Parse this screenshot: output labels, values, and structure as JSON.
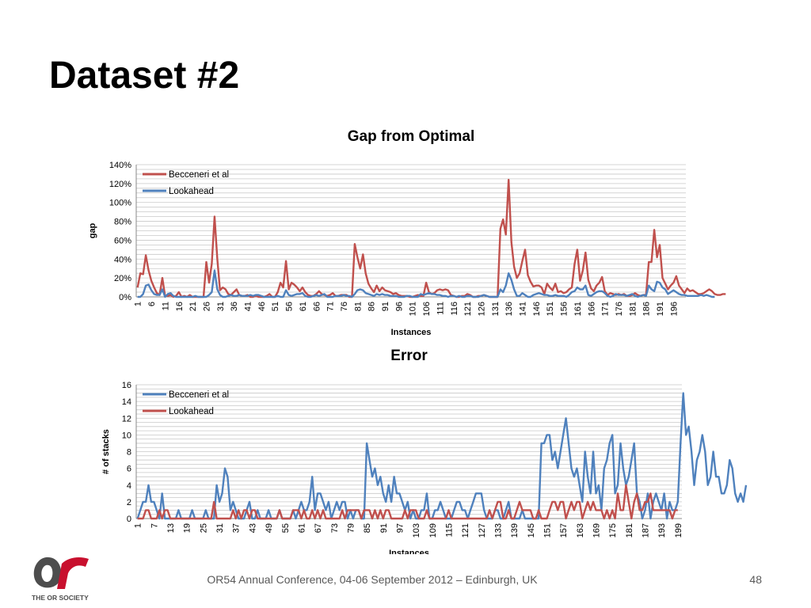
{
  "slide": {
    "title": "Dataset #2",
    "footer": "OR54 Annual Conference, 04-06 September 2012 – Edinburgh, UK",
    "page_number": "48",
    "logo_caption": "THE OR SOCIETY",
    "colors": {
      "red": "#C0504D",
      "blue": "#4F81BD",
      "grid": "#c8c8c8",
      "logo_red": "#C8102E",
      "logo_gray": "#4d4d4d"
    }
  },
  "chart_data": [
    {
      "type": "line",
      "title": "Gap from Optimal",
      "xlabel": "Instances",
      "ylabel": "gap",
      "ylim": [
        0,
        140
      ],
      "y_ticks": [
        "0%",
        "20%",
        "40%",
        "60%",
        "80%",
        "100%",
        "120%",
        "140%"
      ],
      "x_start": 1,
      "x_end": 200,
      "x_tick_step": 5,
      "legend_position": "top-left",
      "grid": true,
      "series": [
        {
          "name": "Becceneri et al",
          "color": "#C0504D",
          "values": [
            10,
            25,
            24,
            44,
            28,
            17,
            10,
            4,
            2,
            20,
            1,
            1,
            2,
            0,
            1,
            5,
            0,
            1,
            0,
            2,
            0,
            0,
            0,
            0,
            0,
            37,
            15,
            35,
            85,
            40,
            7,
            10,
            8,
            3,
            2,
            5,
            8,
            2,
            1,
            1,
            2,
            0,
            0,
            1,
            0,
            0,
            0,
            1,
            3,
            0,
            0,
            5,
            15,
            10,
            38,
            8,
            15,
            13,
            10,
            6,
            10,
            5,
            2,
            1,
            1,
            3,
            6,
            3,
            2,
            1,
            2,
            4,
            1,
            1,
            2,
            2,
            2,
            0,
            0,
            56,
            42,
            30,
            45,
            25,
            14,
            9,
            5,
            12,
            6,
            10,
            7,
            6,
            5,
            3,
            4,
            2,
            1,
            1,
            1,
            0,
            0,
            1,
            2,
            1,
            1,
            15,
            5,
            3,
            4,
            7,
            8,
            7,
            8,
            7,
            2,
            1,
            0,
            0,
            1,
            1,
            3,
            2,
            0,
            0,
            1,
            1,
            2,
            1,
            0,
            0,
            0,
            0,
            72,
            82,
            66,
            124,
            58,
            32,
            20,
            25,
            38,
            50,
            23,
            16,
            11,
            12,
            12,
            10,
            3,
            14,
            10,
            7,
            14,
            5,
            6,
            4,
            5,
            8,
            10,
            35,
            50,
            17,
            28,
            47,
            18,
            9,
            6,
            12,
            15,
            21,
            6,
            2,
            4,
            3,
            2,
            3,
            2,
            3,
            1,
            1,
            2,
            4,
            2,
            1,
            2,
            2,
            37,
            37,
            71,
            42,
            55,
            20,
            14,
            8,
            12,
            15,
            22,
            12,
            8,
            4,
            9,
            6,
            7,
            5,
            3,
            3,
            4,
            6,
            8,
            6,
            3,
            2,
            2,
            3,
            3
          ]
        },
        {
          "name": "Lookahead",
          "color": "#4F81BD",
          "values": [
            0,
            0,
            3,
            12,
            13,
            7,
            3,
            2,
            2,
            8,
            0,
            3,
            4,
            1,
            0,
            0,
            0,
            0,
            0,
            0,
            0,
            1,
            0,
            0,
            0,
            0,
            2,
            5,
            28,
            8,
            2,
            0,
            0,
            1,
            2,
            1,
            1,
            2,
            1,
            1,
            1,
            2,
            1,
            2,
            2,
            1,
            0,
            0,
            0,
            0,
            0,
            1,
            0,
            0,
            7,
            2,
            1,
            2,
            3,
            3,
            4,
            1,
            0,
            0,
            1,
            2,
            1,
            2,
            3,
            0,
            0,
            0,
            1,
            1,
            1,
            2,
            1,
            1,
            0,
            3,
            7,
            8,
            7,
            4,
            3,
            2,
            1,
            3,
            2,
            3,
            2,
            2,
            1,
            1,
            1,
            0,
            0,
            0,
            1,
            1,
            0,
            0,
            0,
            3,
            2,
            3,
            4,
            3,
            3,
            2,
            2,
            1,
            1,
            0,
            1,
            1,
            0,
            1,
            0,
            0,
            1,
            1,
            0,
            0,
            0,
            1,
            2,
            1,
            0,
            0,
            0,
            0,
            8,
            5,
            12,
            25,
            18,
            8,
            1,
            1,
            4,
            2,
            0,
            0,
            2,
            3,
            4,
            3,
            2,
            2,
            1,
            1,
            2,
            1,
            1,
            1,
            0,
            2,
            5,
            6,
            10,
            8,
            8,
            12,
            2,
            1,
            3,
            5,
            6,
            6,
            4,
            1,
            0,
            1,
            3,
            2,
            2,
            2,
            1,
            2,
            3,
            1,
            0,
            1,
            2,
            1,
            12,
            8,
            6,
            16,
            15,
            10,
            8,
            3,
            5,
            7,
            5,
            3,
            2,
            2,
            1,
            1,
            1,
            1,
            1,
            2,
            1,
            2,
            1,
            0,
            0
          ]
        }
      ]
    },
    {
      "type": "line",
      "title": "Error",
      "xlabel": "Instances",
      "ylabel": "# of stacks",
      "ylim": [
        0,
        16
      ],
      "y_ticks": [
        "0",
        "2",
        "4",
        "6",
        "8",
        "10",
        "12",
        "14",
        "16"
      ],
      "x_start": 1,
      "x_end": 200,
      "x_tick_step": 6,
      "legend_position": "top-left",
      "grid": true,
      "series": [
        {
          "name": "Becceneri et al",
          "color": "#4F81BD",
          "values": [
            0,
            1,
            2,
            2,
            4,
            2,
            2,
            1,
            0,
            3,
            0,
            0,
            0,
            0,
            0,
            1,
            0,
            0,
            0,
            0,
            1,
            0,
            0,
            0,
            0,
            1,
            0,
            0,
            0,
            4,
            2,
            3,
            6,
            5,
            1,
            2,
            1,
            0,
            0,
            0,
            1,
            2,
            0,
            0,
            1,
            0,
            0,
            0,
            1,
            0,
            0,
            0,
            1,
            0,
            0,
            0,
            0,
            1,
            0,
            1,
            2,
            1,
            1,
            2,
            5,
            1,
            3,
            3,
            2,
            1,
            2,
            0,
            1,
            2,
            1,
            2,
            2,
            0,
            1,
            0,
            1,
            1,
            0,
            0,
            9,
            7,
            5,
            6,
            4,
            5,
            3,
            2,
            4,
            2,
            5,
            3,
            3,
            2,
            1,
            2,
            0,
            1,
            0,
            0,
            1,
            1,
            3,
            0,
            0,
            1,
            1,
            2,
            1,
            0,
            0,
            0,
            1,
            2,
            2,
            1,
            1,
            0,
            1,
            2,
            3,
            3,
            3,
            1,
            0,
            0,
            0,
            1,
            1,
            0,
            0,
            1,
            2,
            0,
            0,
            0,
            0,
            1,
            0,
            0,
            0,
            0,
            0,
            0,
            9,
            9,
            10,
            10,
            7,
            8,
            6,
            8,
            10,
            12,
            9,
            6,
            5,
            6,
            4,
            2,
            8,
            5,
            3,
            8,
            3,
            4,
            1,
            6,
            7,
            9,
            10,
            3,
            4,
            9,
            6,
            4,
            5,
            7,
            9,
            3,
            2,
            0,
            1,
            3,
            0,
            2,
            3,
            2,
            1,
            3,
            0,
            2,
            1,
            1,
            2,
            9,
            15,
            10,
            11,
            8,
            4,
            7,
            8,
            10,
            8,
            4,
            5,
            8,
            5,
            5,
            3,
            3,
            4,
            7,
            6,
            3,
            2,
            3,
            2,
            4
          ]
        },
        {
          "name": "Lookahead",
          "color": "#C0504D",
          "values": [
            0,
            0,
            0,
            1,
            1,
            0,
            0,
            0,
            1,
            0,
            1,
            1,
            0,
            0,
            0,
            0,
            0,
            0,
            0,
            0,
            0,
            0,
            0,
            0,
            0,
            0,
            0,
            0,
            2,
            0,
            0,
            0,
            0,
            0,
            0,
            1,
            0,
            1,
            0,
            1,
            1,
            0,
            1,
            1,
            0,
            0,
            0,
            0,
            0,
            0,
            0,
            0,
            1,
            0,
            0,
            0,
            0,
            1,
            1,
            1,
            0,
            1,
            0,
            0,
            1,
            0,
            1,
            0,
            1,
            0,
            0,
            0,
            0,
            0,
            0,
            1,
            0,
            1,
            1,
            1,
            1,
            1,
            0,
            1,
            1,
            1,
            0,
            1,
            0,
            1,
            0,
            1,
            1,
            0,
            0,
            0,
            0,
            0,
            1,
            0,
            1,
            1,
            1,
            0,
            0,
            0,
            1,
            0,
            0,
            0,
            0,
            0,
            0,
            0,
            1,
            0,
            0,
            0,
            0,
            0,
            0,
            0,
            0,
            0,
            0,
            0,
            0,
            0,
            0,
            1,
            0,
            1,
            2,
            2,
            0,
            0,
            1,
            0,
            0,
            1,
            2,
            1,
            1,
            1,
            1,
            0,
            0,
            1,
            0,
            0,
            0,
            1,
            2,
            2,
            1,
            2,
            2,
            0,
            1,
            2,
            1,
            2,
            2,
            0,
            1,
            2,
            1,
            2,
            1,
            1,
            1,
            0,
            1,
            0,
            1,
            0,
            3,
            1,
            1,
            4,
            2,
            0,
            2,
            3,
            1,
            1,
            2,
            2,
            3,
            1,
            1,
            1,
            1,
            1,
            1,
            1,
            0,
            1,
            1
          ]
        }
      ]
    }
  ]
}
